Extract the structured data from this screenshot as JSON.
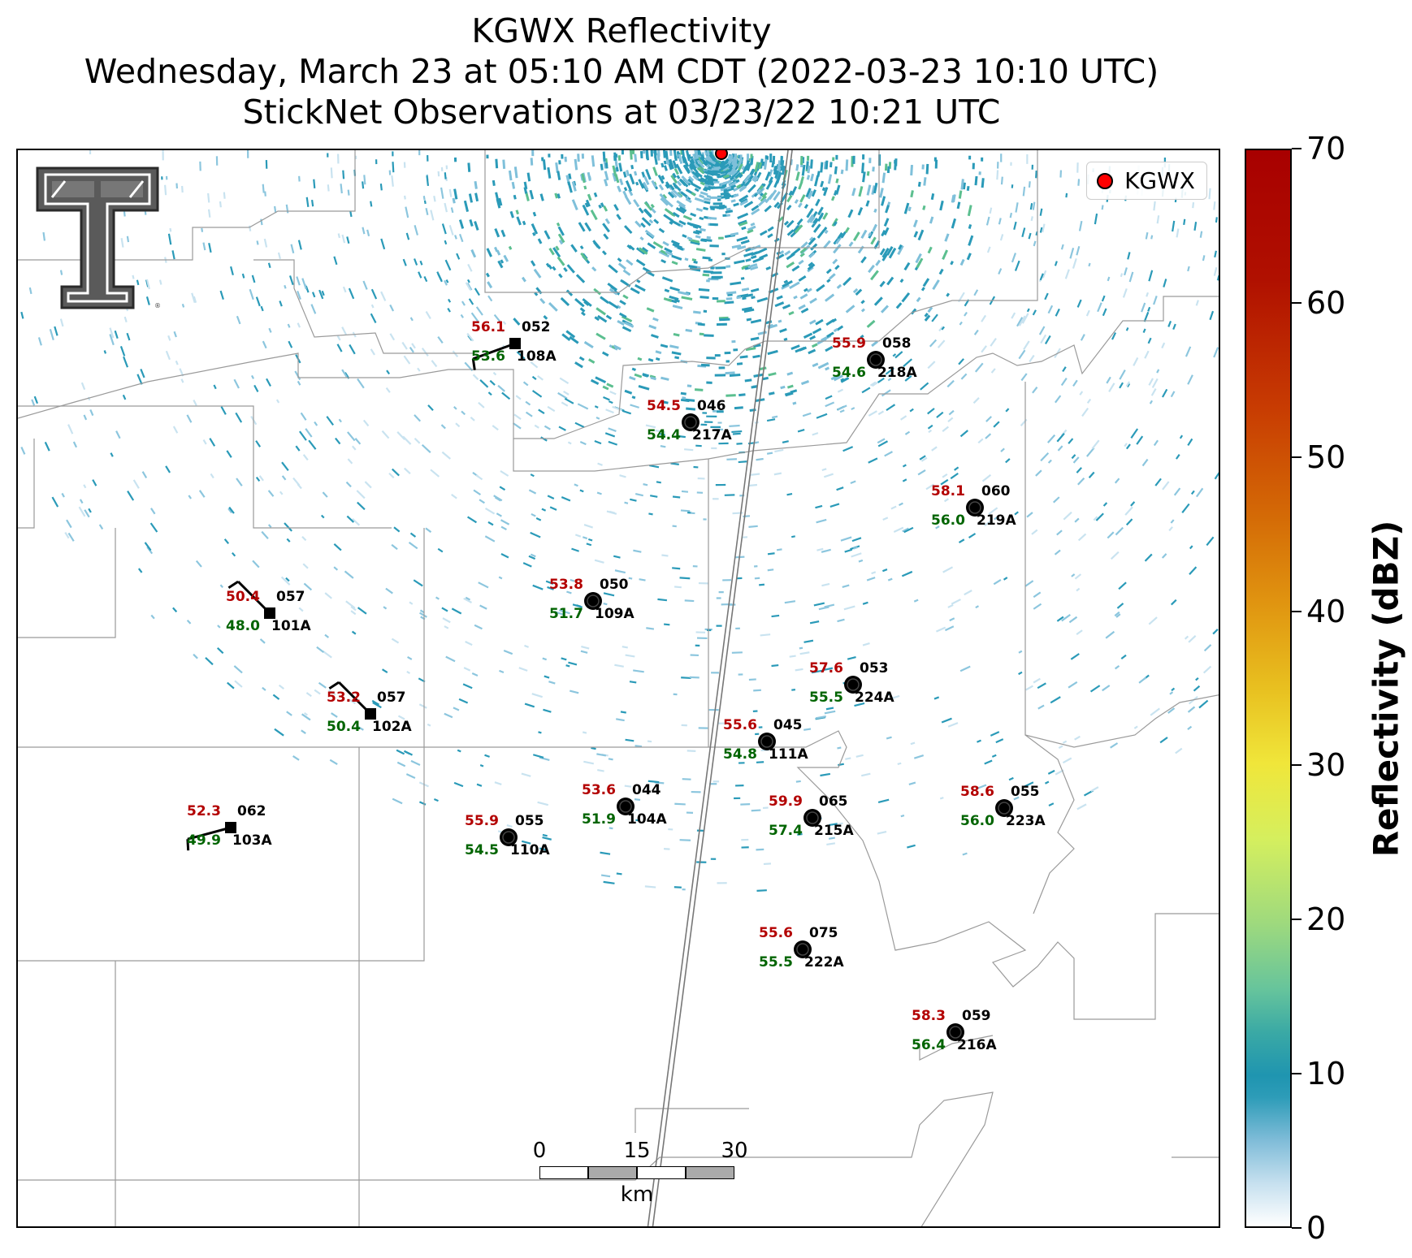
{
  "title": {
    "line1": "KGWX Reflectivity",
    "line2": "Wednesday, March 23 at 05:10 AM CDT (2022-03-23 10:10 UTC)",
    "line3": "StickNet Observations at 03/23/22 10:21 UTC"
  },
  "legend": {
    "label": "KGWX",
    "marker_color": "#ff0000"
  },
  "logo": {
    "name": "Texas Tech Double T logo"
  },
  "colorbar": {
    "label": "Reflectivity (dBZ)",
    "ticks": [
      "0",
      "10",
      "20",
      "30",
      "40",
      "50",
      "60",
      "70"
    ],
    "range": [
      0,
      70
    ]
  },
  "scalebar": {
    "ticks": [
      "0",
      "15",
      "30"
    ],
    "unit": "km"
  },
  "stations": [
    {
      "id": "108A",
      "temp": "56.1",
      "dew": "53.6",
      "dir": "052",
      "marker": "square"
    },
    {
      "id": "218A",
      "temp": "55.9",
      "dew": "54.6",
      "dir": "058",
      "marker": "circle"
    },
    {
      "id": "217A",
      "temp": "54.5",
      "dew": "54.4",
      "dir": "046",
      "marker": "circle"
    },
    {
      "id": "219A",
      "temp": "58.1",
      "dew": "56.0",
      "dir": "060",
      "marker": "circle"
    },
    {
      "id": "109A",
      "temp": "53.8",
      "dew": "51.7",
      "dir": "050",
      "marker": "circle"
    },
    {
      "id": "101A",
      "temp": "50.4",
      "dew": "48.0",
      "dir": "057",
      "marker": "square"
    },
    {
      "id": "224A",
      "temp": "57.6",
      "dew": "55.5",
      "dir": "053",
      "marker": "circle"
    },
    {
      "id": "102A",
      "temp": "53.2",
      "dew": "50.4",
      "dir": "057",
      "marker": "square"
    },
    {
      "id": "111A",
      "temp": "55.6",
      "dew": "54.8",
      "dir": "045",
      "marker": "circle"
    },
    {
      "id": "104A",
      "temp": "53.6",
      "dew": "51.9",
      "dir": "044",
      "marker": "circle"
    },
    {
      "id": "215A",
      "temp": "59.9",
      "dew": "57.4",
      "dir": "065",
      "marker": "circle"
    },
    {
      "id": "223A",
      "temp": "58.6",
      "dew": "56.0",
      "dir": "055",
      "marker": "circle"
    },
    {
      "id": "103A",
      "temp": "52.3",
      "dew": "49.9",
      "dir": "062",
      "marker": "square"
    },
    {
      "id": "110A",
      "temp": "55.9",
      "dew": "54.5",
      "dir": "055",
      "marker": "circle"
    },
    {
      "id": "222A",
      "temp": "55.6",
      "dew": "55.5",
      "dir": "075",
      "marker": "circle"
    },
    {
      "id": "216A",
      "temp": "58.3",
      "dew": "56.4",
      "dir": "059",
      "marker": "circle"
    }
  ]
}
